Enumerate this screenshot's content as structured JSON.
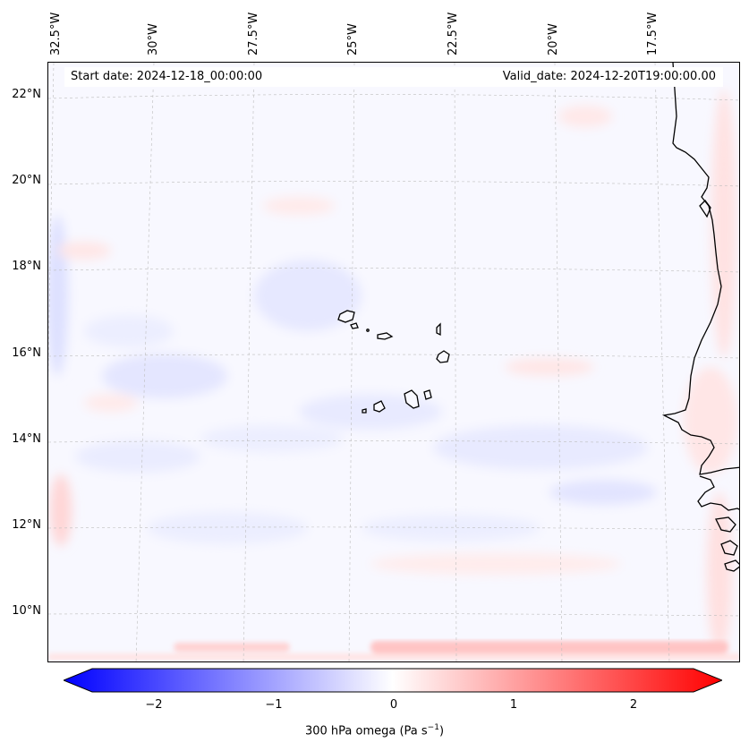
{
  "map": {
    "start_date": "Start date: 2024-12-18_00:00:00",
    "valid_date": "Valid_date: 2024-12-20T19:00:00.00",
    "lon_labels": [
      "32.5°W",
      "30°W",
      "27.5°W",
      "25°W",
      "22.5°W",
      "20°W",
      "17.5°W"
    ],
    "lat_labels": [
      "22°N",
      "20°N",
      "18°N",
      "16°N",
      "14°N",
      "12°N",
      "10°N"
    ],
    "field": "300 hPa omega",
    "features": [
      "Cape Verde islands",
      "West African coastline"
    ]
  },
  "colorbar": {
    "ticks": [
      "−2",
      "−1",
      "0",
      "1",
      "2"
    ],
    "tick_values": [
      -2,
      -1,
      0,
      1,
      2
    ],
    "range": [
      -2.5,
      2.5
    ],
    "label": "300 hPa omega (Pa s",
    "label_sup": "−1",
    "label_end": ")",
    "colormap": "bwr",
    "color_min": "#0000ff",
    "color_mid": "#ffffff",
    "color_max": "#ff0000"
  }
}
